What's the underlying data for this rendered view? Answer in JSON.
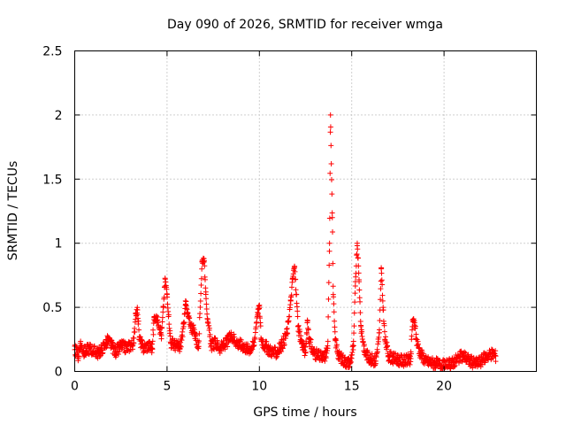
{
  "chart_data": {
    "type": "scatter",
    "title": "Day 090 of 2026, SRMTID for receiver wmga",
    "xlabel": "GPS time / hours",
    "ylabel": "SRMTID / TECUs",
    "xlim": [
      0,
      25
    ],
    "ylim": [
      0,
      2.5
    ],
    "x_ticks": [
      0,
      5,
      10,
      15,
      20
    ],
    "x_tick_labels": [
      "0",
      "5",
      "10",
      "15",
      "20"
    ],
    "y_ticks": [
      0,
      0.5,
      1,
      1.5,
      2,
      2.5
    ],
    "y_tick_labels": [
      "0",
      "0.5",
      "1",
      "1.5",
      "2",
      "2.5"
    ],
    "grid": true,
    "marker": "+",
    "color": "#ff0000",
    "series": [
      {
        "name": "SRMTID",
        "anchors": [
          [
            0.0,
            0.17
          ],
          [
            0.2,
            0.12
          ],
          [
            0.3,
            0.22
          ],
          [
            0.5,
            0.15
          ],
          [
            0.8,
            0.18
          ],
          [
            1.0,
            0.16
          ],
          [
            1.3,
            0.14
          ],
          [
            1.6,
            0.2
          ],
          [
            1.8,
            0.24
          ],
          [
            2.0,
            0.2
          ],
          [
            2.2,
            0.15
          ],
          [
            2.5,
            0.2
          ],
          [
            2.8,
            0.18
          ],
          [
            3.0,
            0.2
          ],
          [
            3.2,
            0.22
          ],
          [
            3.3,
            0.45
          ],
          [
            3.4,
            0.48
          ],
          [
            3.5,
            0.25
          ],
          [
            3.7,
            0.18
          ],
          [
            4.0,
            0.2
          ],
          [
            4.2,
            0.18
          ],
          [
            4.3,
            0.42
          ],
          [
            4.5,
            0.4
          ],
          [
            4.7,
            0.28
          ],
          [
            4.8,
            0.5
          ],
          [
            4.9,
            0.72
          ],
          [
            5.0,
            0.6
          ],
          [
            5.2,
            0.22
          ],
          [
            5.5,
            0.2
          ],
          [
            5.7,
            0.18
          ],
          [
            5.9,
            0.35
          ],
          [
            6.0,
            0.55
          ],
          [
            6.1,
            0.45
          ],
          [
            6.3,
            0.35
          ],
          [
            6.5,
            0.3
          ],
          [
            6.7,
            0.18
          ],
          [
            6.9,
            0.86
          ],
          [
            7.0,
            0.88
          ],
          [
            7.1,
            0.62
          ],
          [
            7.2,
            0.38
          ],
          [
            7.4,
            0.2
          ],
          [
            7.6,
            0.22
          ],
          [
            7.9,
            0.18
          ],
          [
            8.2,
            0.22
          ],
          [
            8.5,
            0.28
          ],
          [
            8.8,
            0.22
          ],
          [
            9.1,
            0.2
          ],
          [
            9.4,
            0.17
          ],
          [
            9.7,
            0.2
          ],
          [
            9.9,
            0.46
          ],
          [
            10.0,
            0.5
          ],
          [
            10.1,
            0.25
          ],
          [
            10.3,
            0.2
          ],
          [
            10.6,
            0.16
          ],
          [
            10.9,
            0.14
          ],
          [
            11.2,
            0.2
          ],
          [
            11.5,
            0.3
          ],
          [
            11.7,
            0.55
          ],
          [
            11.8,
            0.72
          ],
          [
            11.9,
            0.82
          ],
          [
            12.0,
            0.6
          ],
          [
            12.1,
            0.35
          ],
          [
            12.3,
            0.22
          ],
          [
            12.5,
            0.15
          ],
          [
            12.6,
            0.4
          ],
          [
            12.7,
            0.25
          ],
          [
            12.9,
            0.15
          ],
          [
            13.2,
            0.12
          ],
          [
            13.5,
            0.1
          ],
          [
            13.7,
            0.18
          ],
          [
            13.8,
            1.0
          ],
          [
            13.85,
            2.0
          ],
          [
            13.95,
            1.2
          ],
          [
            14.0,
            0.6
          ],
          [
            14.1,
            0.25
          ],
          [
            14.3,
            0.12
          ],
          [
            14.6,
            0.08
          ],
          [
            14.9,
            0.06
          ],
          [
            15.1,
            0.2
          ],
          [
            15.2,
            0.7
          ],
          [
            15.3,
            1.0
          ],
          [
            15.4,
            0.7
          ],
          [
            15.5,
            0.35
          ],
          [
            15.7,
            0.15
          ],
          [
            16.0,
            0.1
          ],
          [
            16.3,
            0.08
          ],
          [
            16.5,
            0.3
          ],
          [
            16.6,
            0.8
          ],
          [
            16.7,
            0.5
          ],
          [
            16.8,
            0.25
          ],
          [
            17.0,
            0.12
          ],
          [
            17.3,
            0.1
          ],
          [
            17.6,
            0.09
          ],
          [
            17.9,
            0.08
          ],
          [
            18.2,
            0.1
          ],
          [
            18.3,
            0.4
          ],
          [
            18.4,
            0.38
          ],
          [
            18.5,
            0.25
          ],
          [
            18.7,
            0.15
          ],
          [
            19.0,
            0.08
          ],
          [
            19.3,
            0.07
          ],
          [
            19.6,
            0.06
          ],
          [
            19.9,
            0.05
          ],
          [
            20.2,
            0.05
          ],
          [
            20.5,
            0.07
          ],
          [
            20.8,
            0.11
          ],
          [
            21.1,
            0.12
          ],
          [
            21.4,
            0.08
          ],
          [
            21.7,
            0.06
          ],
          [
            22.0,
            0.08
          ],
          [
            22.3,
            0.12
          ],
          [
            22.6,
            0.14
          ],
          [
            22.8,
            0.12
          ]
        ]
      }
    ]
  }
}
